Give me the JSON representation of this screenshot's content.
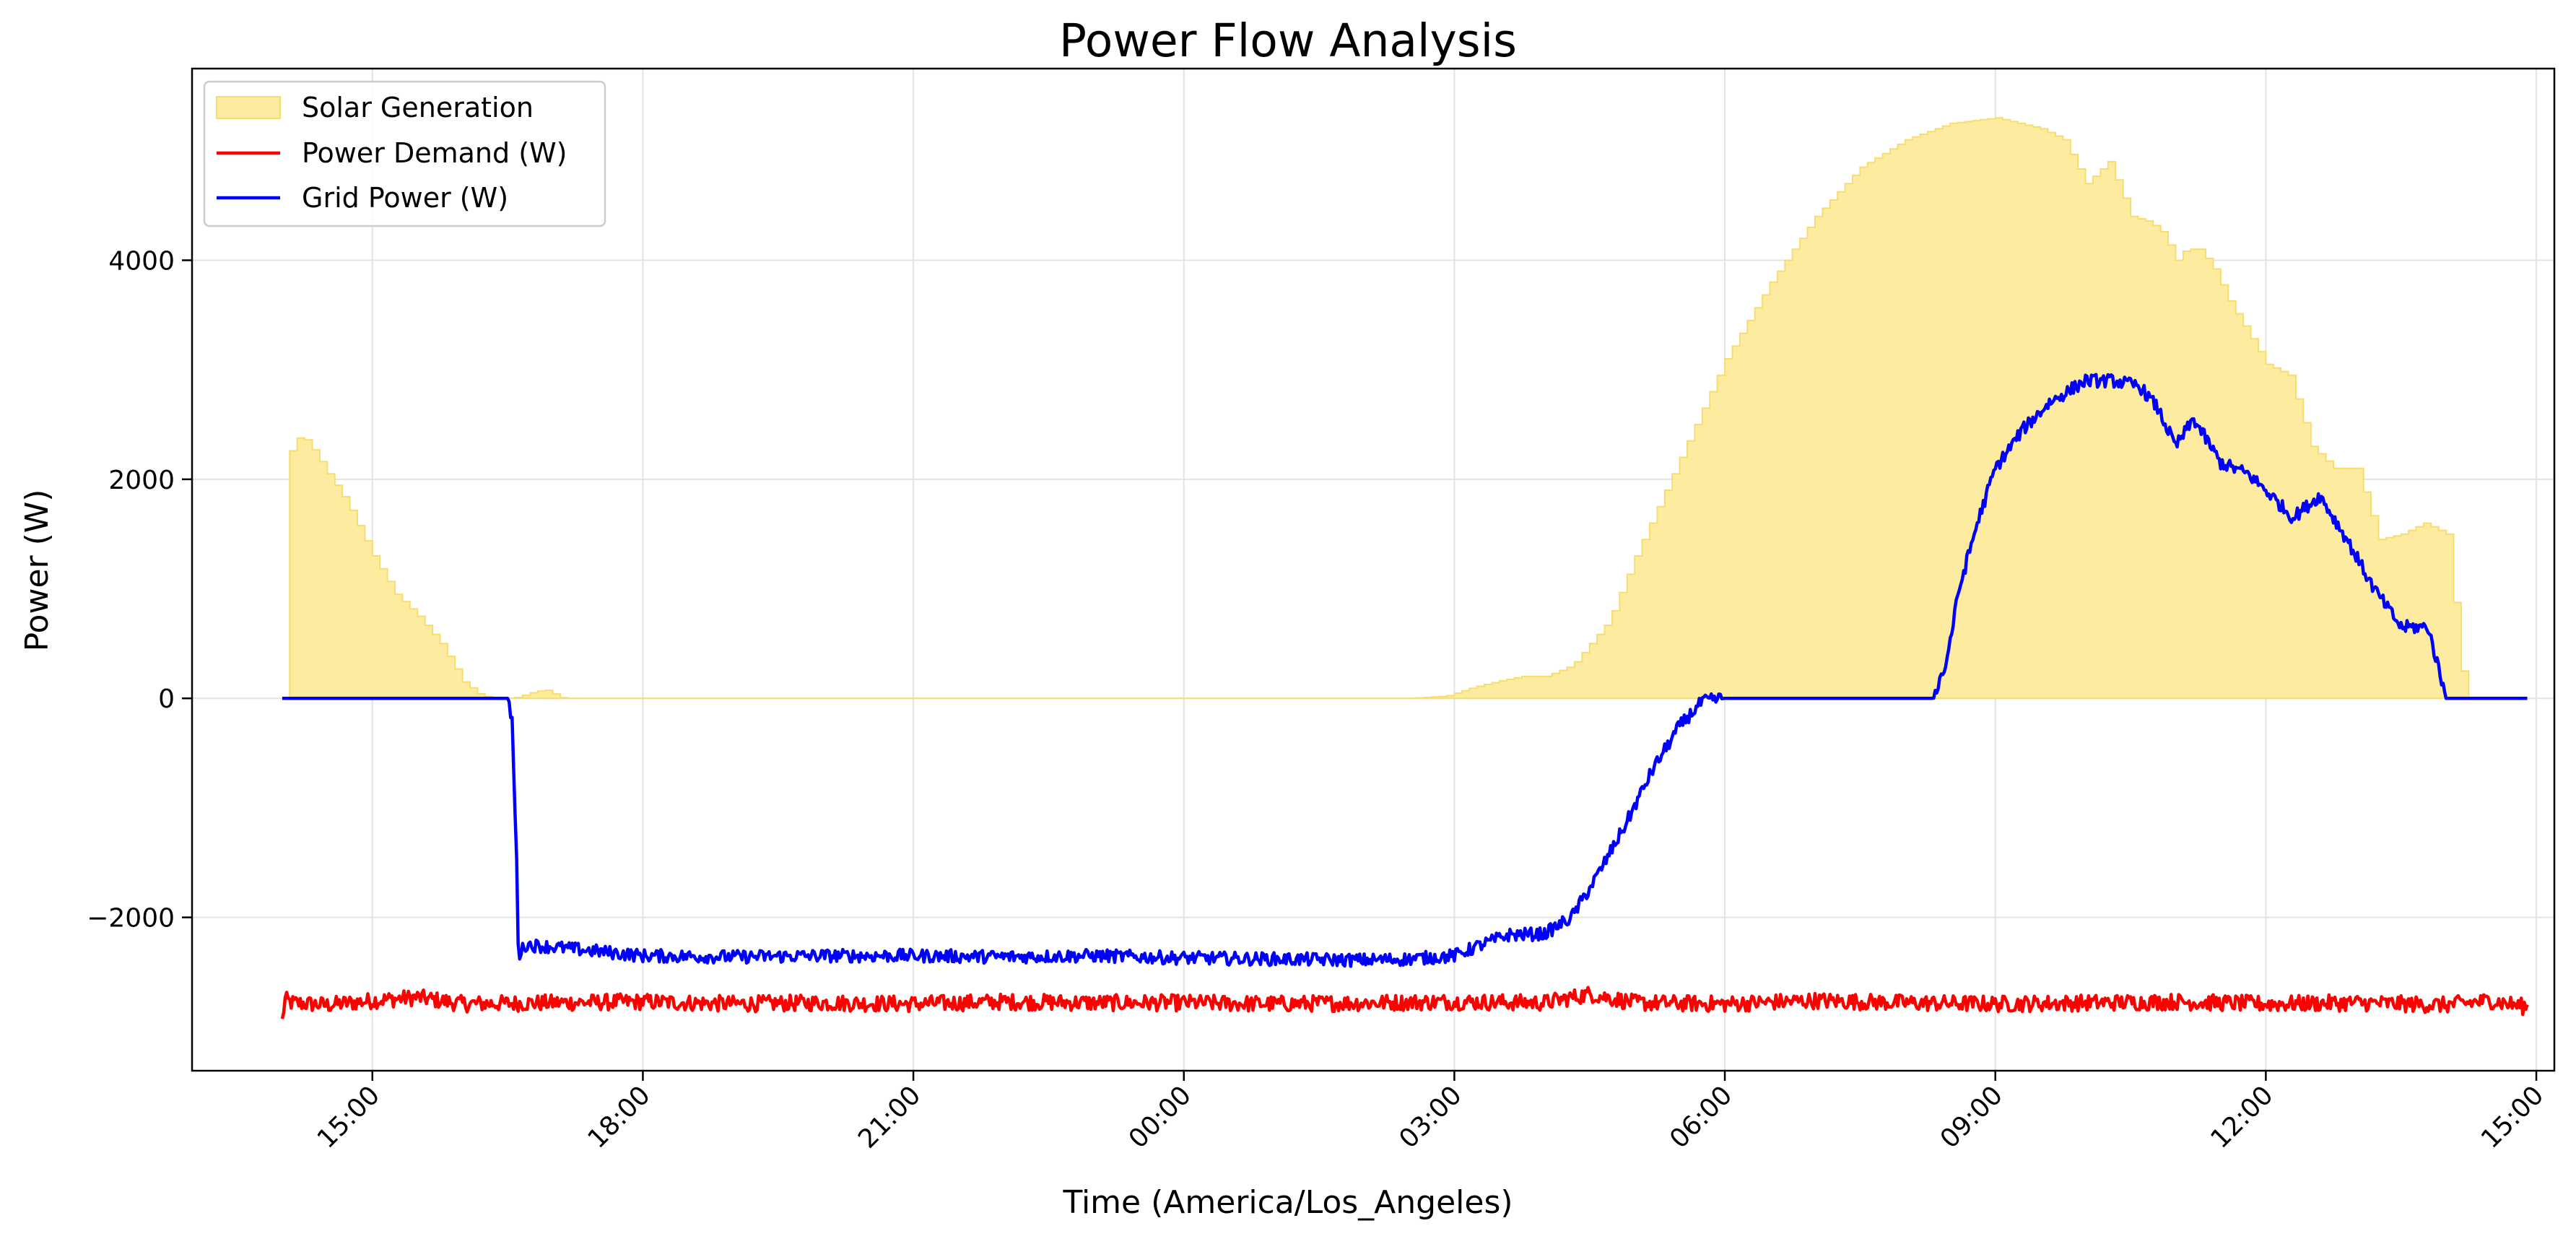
{
  "chart_data": {
    "type": "line",
    "title": "Power Flow Analysis",
    "xlabel": "Time (America/Los_Angeles)",
    "ylabel": "Power (W)",
    "x_ticks": [
      "15:00",
      "18:00",
      "21:00",
      "00:00",
      "03:00",
      "06:00",
      "09:00",
      "12:00",
      "15:00"
    ],
    "y_ticks": [
      -2000,
      0,
      2000,
      4000
    ],
    "y_tick_labels": [
      "−2000",
      "0",
      "2000",
      "4000"
    ],
    "xlim_hours": [
      13.0,
      39.2
    ],
    "ylim": [
      -3400,
      5750
    ],
    "grid": true,
    "legend_position": "top-left",
    "series": [
      {
        "name": "Solar Generation",
        "kind": "area",
        "color": "#fdeb9f",
        "edge_color": "#f7dd6e",
        "x_hours": [
          14.0,
          14.05,
          14.15,
          14.25,
          14.35,
          14.5,
          14.7,
          15.0,
          15.25,
          15.5,
          15.75,
          16.0,
          16.2,
          16.4,
          16.55,
          16.75,
          16.9,
          17.0,
          17.1,
          17.5,
          18.0,
          21.0,
          24.0,
          26.5,
          26.9,
          27.2,
          27.5,
          27.75,
          28.0,
          28.3,
          28.7,
          29.0,
          29.5,
          30.0,
          30.5,
          31.0,
          31.5,
          32.0,
          32.5,
          33.0,
          33.5,
          33.75,
          34.0,
          34.25,
          34.5,
          34.7,
          34.85,
          35.0,
          35.1,
          35.25,
          35.4,
          35.6,
          35.75,
          36.0,
          36.25,
          36.5,
          36.75,
          37.0,
          37.25,
          37.5,
          37.75,
          38.0,
          38.2,
          38.4,
          38.6,
          38.75,
          38.9
        ],
        "values": [
          0,
          2200,
          2380,
          2360,
          2250,
          2050,
          1800,
          1300,
          950,
          750,
          500,
          150,
          20,
          0,
          0,
          50,
          80,
          40,
          0,
          0,
          0,
          0,
          0,
          0,
          20,
          100,
          160,
          200,
          200,
          300,
          700,
          1300,
          2200,
          3100,
          3800,
          4400,
          4850,
          5100,
          5250,
          5300,
          5200,
          5100,
          4700,
          4900,
          4400,
          4350,
          4250,
          4000,
          4100,
          4100,
          3950,
          3600,
          3400,
          3050,
          2950,
          2300,
          2100,
          2100,
          1450,
          1500,
          1600,
          1500,
          0,
          0,
          0,
          0,
          0
        ]
      },
      {
        "name": "Power Demand (W)",
        "kind": "line",
        "color": "#ff0000",
        "x_hours": [
          14.0,
          14.03,
          14.1,
          14.5,
          15.0,
          15.5,
          16.0,
          17.0,
          18.0,
          19.0,
          20.0,
          21.0,
          22.0,
          23.0,
          24.0,
          25.0,
          26.0,
          27.0,
          28.0,
          28.5,
          29.0,
          30.0,
          31.0,
          32.0,
          33.0,
          34.0,
          35.0,
          36.0,
          37.0,
          38.0,
          38.5,
          38.9
        ],
        "values": [
          -2950,
          -2750,
          -2780,
          -2800,
          -2760,
          -2730,
          -2790,
          -2780,
          -2770,
          -2790,
          -2780,
          -2790,
          -2770,
          -2780,
          -2780,
          -2790,
          -2780,
          -2770,
          -2780,
          -2700,
          -2780,
          -2790,
          -2760,
          -2780,
          -2790,
          -2780,
          -2770,
          -2790,
          -2780,
          -2800,
          -2760,
          -2820
        ]
      },
      {
        "name": "Grid Power (W)",
        "kind": "line",
        "color": "#0000ff",
        "x_hours": [
          14.0,
          16.5,
          16.55,
          16.6,
          16.62,
          16.7,
          17.0,
          18.0,
          19.0,
          20.0,
          21.0,
          22.0,
          23.0,
          24.0,
          25.0,
          26.0,
          26.5,
          27.0,
          27.3,
          27.6,
          28.0,
          28.3,
          28.6,
          28.9,
          29.2,
          29.5,
          29.75,
          30.0,
          31.0,
          32.0,
          32.3,
          32.45,
          32.6,
          32.8,
          33.0,
          33.3,
          33.6,
          34.0,
          34.3,
          34.6,
          34.8,
          35.0,
          35.2,
          35.5,
          35.8,
          36.0,
          36.3,
          36.6,
          36.9,
          37.2,
          37.5,
          37.8,
          38.0,
          38.3,
          38.6,
          38.9
        ],
        "values": [
          0,
          0,
          -200,
          -1500,
          -2350,
          -2250,
          -2270,
          -2350,
          -2360,
          -2350,
          -2350,
          -2360,
          -2350,
          -2370,
          -2380,
          -2390,
          -2380,
          -2350,
          -2250,
          -2160,
          -2150,
          -2000,
          -1600,
          -1150,
          -650,
          -250,
          -30,
          0,
          0,
          0,
          0,
          300,
          1000,
          1600,
          2100,
          2450,
          2700,
          2900,
          2900,
          2850,
          2650,
          2300,
          2550,
          2150,
          2050,
          1900,
          1650,
          1850,
          1450,
          1000,
          650,
          650,
          0,
          0,
          0,
          0
        ]
      }
    ]
  }
}
